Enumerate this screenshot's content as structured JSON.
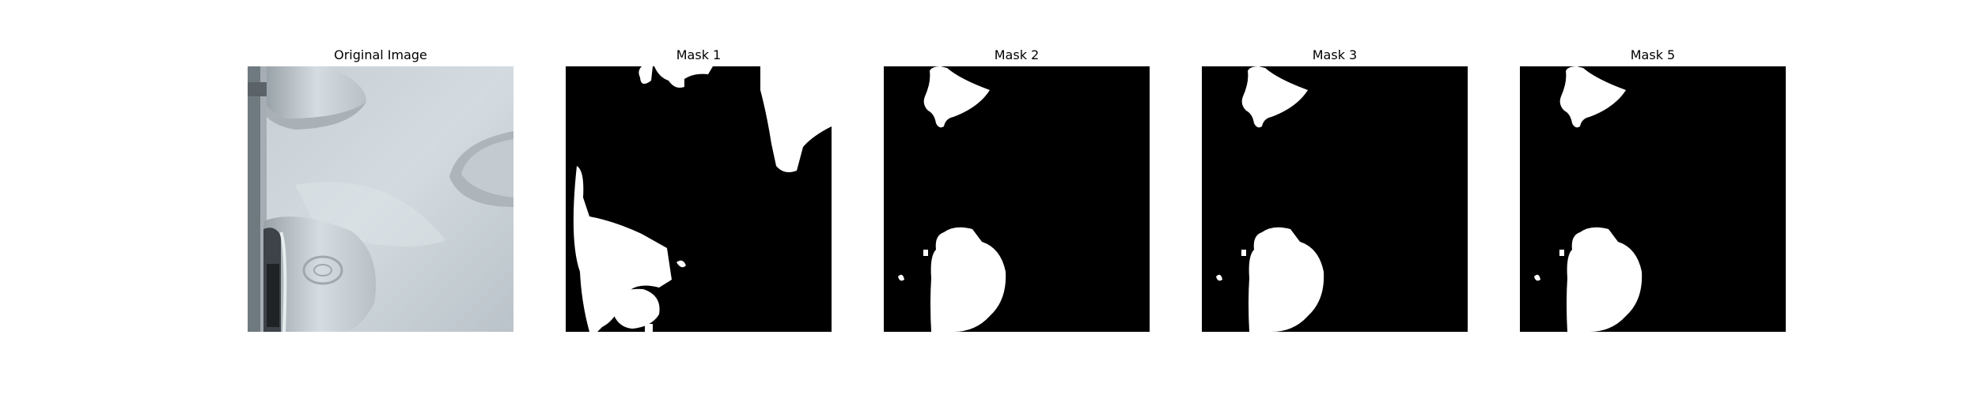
{
  "panels": [
    {
      "title": "Original Image"
    },
    {
      "title": "Mask 1"
    },
    {
      "title": "Mask 2"
    },
    {
      "title": "Mask 3"
    },
    {
      "title": "Mask 5"
    }
  ],
  "colors": {
    "mask_background": "#000000",
    "mask_foreground": "#ffffff",
    "photo_surface": "#c9d2d8",
    "photo_shadow": "#8e969c"
  }
}
